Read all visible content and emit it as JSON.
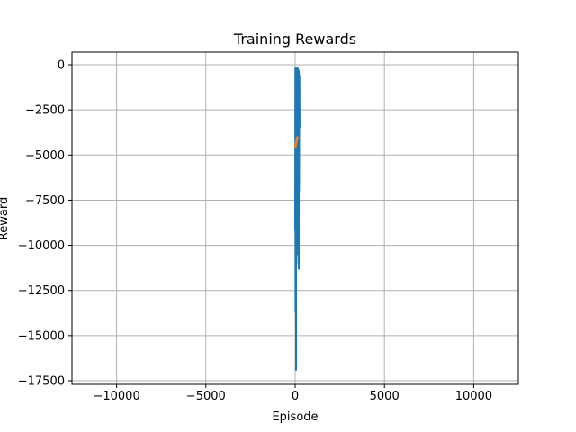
{
  "chart_data": {
    "type": "line",
    "title": "Training Rewards",
    "xlabel": "Episode",
    "ylabel": "Reward",
    "xlim": [
      -12500,
      12500
    ],
    "ylim": [
      -17700,
      700
    ],
    "xticks": [
      -10000,
      -5000,
      0,
      5000,
      10000
    ],
    "xtick_labels": [
      "−10000",
      "−5000",
      "0",
      "5000",
      "10000"
    ],
    "yticks": [
      0,
      -2500,
      -5000,
      -7500,
      -10000,
      -12500,
      -15000,
      -17500
    ],
    "ytick_labels": [
      "0",
      "−2500",
      "−5000",
      "−7500",
      "−10000",
      "−12500",
      "−15000",
      "−17500"
    ],
    "grid": true,
    "legend": false,
    "series": [
      {
        "color": "#1f77b4",
        "x": [
          0,
          10,
          20,
          30,
          40,
          50,
          60,
          70,
          80,
          90,
          100,
          110,
          120,
          130,
          140,
          150,
          160,
          170,
          180,
          190,
          200,
          210,
          220,
          230,
          240,
          250
        ],
        "y": [
          -9200,
          -200,
          -13700,
          -800,
          -3000,
          -16900,
          -500,
          -11000,
          -200,
          -6000,
          -400,
          -10500,
          -300,
          -2500,
          -8000,
          -200,
          -9800,
          -1000,
          -5000,
          -300,
          -11300,
          -400,
          -7000,
          -2000,
          -600,
          -3500
        ]
      },
      {
        "color": "#ff7f0e",
        "x": [
          0,
          20,
          40,
          60,
          80,
          100,
          120,
          140,
          160
        ],
        "y": [
          -4600,
          -4500,
          -4400,
          -4300,
          -4200,
          -4100,
          -4050,
          -4000,
          -4000
        ]
      }
    ]
  }
}
